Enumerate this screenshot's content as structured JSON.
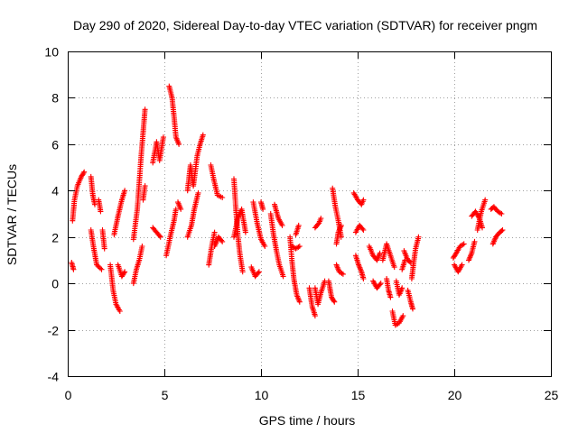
{
  "chart_data": {
    "type": "scatter",
    "title": "Day 290 of 2020, Sidereal Day-to-day VTEC variation (SDTVAR) for receiver pngm",
    "xlabel": "GPS time / hours",
    "ylabel": "SDTVAR / TECUs",
    "xlim": [
      0,
      25
    ],
    "ylim": [
      -4,
      10
    ],
    "xticks": [
      0,
      5,
      10,
      15,
      20,
      25
    ],
    "yticks": [
      -4,
      -2,
      0,
      2,
      4,
      6,
      8,
      10
    ],
    "grid": true,
    "marker": "+",
    "color": "#ff0000",
    "series": [
      {
        "name": "SDTVAR",
        "tracks": [
          [
            [
              0.2,
              0.9
            ],
            [
              0.3,
              0.6
            ]
          ],
          [
            [
              0.25,
              2.7
            ],
            [
              0.35,
              3.6
            ],
            [
              0.5,
              4.2
            ],
            [
              0.7,
              4.6
            ],
            [
              0.85,
              4.8
            ]
          ],
          [
            [
              1.2,
              4.6
            ],
            [
              1.3,
              3.8
            ],
            [
              1.4,
              3.4
            ]
          ],
          [
            [
              1.2,
              2.3
            ],
            [
              1.35,
              1.5
            ],
            [
              1.5,
              0.8
            ],
            [
              1.75,
              0.6
            ]
          ],
          [
            [
              1.6,
              3.6
            ],
            [
              1.7,
              3.1
            ]
          ],
          [
            [
              1.8,
              2.3
            ],
            [
              1.9,
              1.5
            ]
          ],
          [
            [
              2.2,
              0.8
            ],
            [
              2.35,
              -0.3
            ],
            [
              2.5,
              -0.9
            ],
            [
              2.7,
              -1.2
            ]
          ],
          [
            [
              2.4,
              2.1
            ],
            [
              2.6,
              2.9
            ],
            [
              2.8,
              3.6
            ],
            [
              2.95,
              4.0
            ]
          ],
          [
            [
              2.6,
              0.8
            ],
            [
              2.8,
              0.3
            ],
            [
              2.95,
              0.5
            ]
          ],
          [
            [
              3.4,
              0.0
            ],
            [
              3.55,
              0.6
            ],
            [
              3.7,
              1.0
            ],
            [
              3.85,
              1.6
            ]
          ],
          [
            [
              3.4,
              1.9
            ],
            [
              3.6,
              3.2
            ],
            [
              3.8,
              5.5
            ],
            [
              3.95,
              7.0
            ],
            [
              4.0,
              7.5
            ]
          ],
          [
            [
              3.9,
              3.6
            ],
            [
              4.0,
              4.2
            ]
          ],
          [
            [
              4.4,
              5.2
            ],
            [
              4.6,
              6.1
            ],
            [
              4.75,
              5.3
            ],
            [
              4.95,
              6.3
            ]
          ],
          [
            [
              4.4,
              2.4
            ],
            [
              4.6,
              2.2
            ],
            [
              4.8,
              2.0
            ]
          ],
          [
            [
              5.25,
              8.5
            ],
            [
              5.4,
              8.0
            ],
            [
              5.5,
              7.2
            ],
            [
              5.6,
              6.3
            ],
            [
              5.75,
              6.0
            ]
          ],
          [
            [
              5.1,
              1.2
            ],
            [
              5.3,
              2.0
            ],
            [
              5.5,
              2.7
            ],
            [
              5.6,
              3.2
            ]
          ],
          [
            [
              5.7,
              3.5
            ],
            [
              5.85,
              3.2
            ]
          ],
          [
            [
              6.2,
              4.0
            ],
            [
              6.35,
              5.1
            ],
            [
              6.5,
              4.2
            ],
            [
              6.7,
              5.5
            ],
            [
              6.85,
              6.0
            ],
            [
              7.0,
              6.4
            ]
          ],
          [
            [
              6.2,
              2.0
            ],
            [
              6.4,
              2.5
            ],
            [
              6.55,
              3.2
            ],
            [
              6.75,
              3.9
            ]
          ],
          [
            [
              7.3,
              0.8
            ],
            [
              7.45,
              1.6
            ],
            [
              7.6,
              2.2
            ]
          ],
          [
            [
              7.4,
              5.1
            ],
            [
              7.55,
              4.5
            ],
            [
              7.75,
              3.8
            ],
            [
              8.0,
              3.7
            ]
          ],
          [
            [
              7.6,
              1.6
            ],
            [
              7.8,
              2.0
            ],
            [
              8.0,
              1.8
            ]
          ],
          [
            [
              8.6,
              4.5
            ],
            [
              8.7,
              3.2
            ],
            [
              8.8,
              2.1
            ],
            [
              8.9,
              1.3
            ],
            [
              9.05,
              0.5
            ]
          ],
          [
            [
              8.6,
              2.0
            ],
            [
              8.8,
              2.8
            ],
            [
              9.0,
              3.2
            ],
            [
              9.2,
              2.2
            ]
          ],
          [
            [
              9.6,
              3.5
            ],
            [
              9.8,
              2.6
            ],
            [
              10.0,
              1.9
            ],
            [
              10.2,
              1.6
            ]
          ],
          [
            [
              9.5,
              0.7
            ],
            [
              9.7,
              0.3
            ],
            [
              9.9,
              0.5
            ]
          ],
          [
            [
              10.0,
              3.5
            ],
            [
              10.1,
              3.2
            ]
          ],
          [
            [
              10.5,
              3.0
            ],
            [
              10.65,
              2.1
            ],
            [
              10.8,
              1.4
            ],
            [
              10.95,
              0.8
            ],
            [
              11.15,
              0.3
            ]
          ],
          [
            [
              10.7,
              3.4
            ],
            [
              10.9,
              2.8
            ],
            [
              11.1,
              2.5
            ]
          ],
          [
            [
              11.5,
              2.0
            ],
            [
              11.6,
              1.0
            ],
            [
              11.7,
              0.2
            ],
            [
              11.85,
              -0.5
            ],
            [
              12.0,
              -0.8
            ]
          ],
          [
            [
              11.8,
              2.1
            ],
            [
              11.95,
              2.5
            ]
          ],
          [
            [
              11.6,
              1.6
            ],
            [
              11.8,
              1.5
            ],
            [
              12.0,
              1.6
            ]
          ],
          [
            [
              12.5,
              -0.2
            ],
            [
              12.65,
              -1.0
            ],
            [
              12.8,
              -1.4
            ]
          ],
          [
            [
              12.8,
              -0.2
            ],
            [
              12.95,
              -0.9
            ],
            [
              13.1,
              -0.4
            ],
            [
              13.3,
              0.1
            ]
          ],
          [
            [
              12.8,
              2.4
            ],
            [
              13.0,
              2.6
            ],
            [
              13.1,
              2.8
            ]
          ],
          [
            [
              13.5,
              0.1
            ],
            [
              13.65,
              -0.6
            ],
            [
              13.8,
              -0.8
            ]
          ],
          [
            [
              13.7,
              4.1
            ],
            [
              13.85,
              3.3
            ],
            [
              14.0,
              2.7
            ],
            [
              14.15,
              2.0
            ]
          ],
          [
            [
              13.9,
              1.7
            ],
            [
              14.0,
              2.2
            ],
            [
              14.15,
              2.5
            ]
          ],
          [
            [
              13.9,
              0.8
            ],
            [
              14.05,
              0.5
            ],
            [
              14.25,
              0.4
            ]
          ],
          [
            [
              14.8,
              3.9
            ],
            [
              15.0,
              3.6
            ],
            [
              15.2,
              3.4
            ],
            [
              15.3,
              3.6
            ]
          ],
          [
            [
              14.9,
              2.2
            ],
            [
              15.1,
              2.5
            ],
            [
              15.3,
              2.3
            ]
          ],
          [
            [
              14.9,
              1.2
            ],
            [
              15.05,
              0.8
            ],
            [
              15.2,
              0.5
            ],
            [
              15.3,
              0.2
            ]
          ],
          [
            [
              15.6,
              1.6
            ],
            [
              15.8,
              1.2
            ],
            [
              16.0,
              1.0
            ],
            [
              16.15,
              1.3
            ]
          ],
          [
            [
              15.8,
              0.1
            ],
            [
              16.0,
              -0.2
            ],
            [
              16.2,
              0.0
            ]
          ],
          [
            [
              16.3,
              1.0
            ],
            [
              16.5,
              1.7
            ],
            [
              16.7,
              1.2
            ],
            [
              16.9,
              0.7
            ]
          ],
          [
            [
              16.5,
              0.2
            ],
            [
              16.6,
              -0.3
            ],
            [
              16.7,
              -0.6
            ]
          ],
          [
            [
              16.8,
              -1.2
            ],
            [
              16.95,
              -1.8
            ],
            [
              17.15,
              -1.7
            ],
            [
              17.35,
              -1.4
            ]
          ],
          [
            [
              17.0,
              0.1
            ],
            [
              17.15,
              -0.5
            ],
            [
              17.3,
              -0.2
            ]
          ],
          [
            [
              17.3,
              0.6
            ],
            [
              17.45,
              1.0
            ]
          ],
          [
            [
              17.4,
              1.4
            ],
            [
              17.6,
              1.0
            ],
            [
              17.75,
              0.9
            ]
          ],
          [
            [
              17.6,
              -0.3
            ],
            [
              17.75,
              -0.8
            ],
            [
              17.85,
              -1.1
            ]
          ],
          [
            [
              17.8,
              0.2
            ],
            [
              17.9,
              0.9
            ],
            [
              18.0,
              1.5
            ],
            [
              18.15,
              2.0
            ]
          ],
          [
            [
              19.95,
              1.1
            ],
            [
              20.1,
              1.3
            ],
            [
              20.3,
              1.6
            ],
            [
              20.5,
              1.7
            ]
          ],
          [
            [
              20.0,
              0.8
            ],
            [
              20.2,
              0.5
            ],
            [
              20.4,
              0.8
            ]
          ],
          [
            [
              20.75,
              1.0
            ],
            [
              20.9,
              1.3
            ],
            [
              21.05,
              1.8
            ]
          ],
          [
            [
              20.9,
              2.9
            ],
            [
              21.1,
              3.1
            ],
            [
              21.3,
              2.8
            ],
            [
              21.45,
              2.4
            ]
          ],
          [
            [
              21.2,
              2.3
            ],
            [
              21.4,
              3.1
            ],
            [
              21.6,
              3.6
            ]
          ],
          [
            [
              21.9,
              3.2
            ],
            [
              22.05,
              3.3
            ],
            [
              22.25,
              3.1
            ],
            [
              22.45,
              3.0
            ]
          ],
          [
            [
              22.0,
              1.7
            ],
            [
              22.15,
              2.0
            ],
            [
              22.35,
              2.2
            ],
            [
              22.5,
              2.3
            ]
          ]
        ]
      }
    ]
  }
}
